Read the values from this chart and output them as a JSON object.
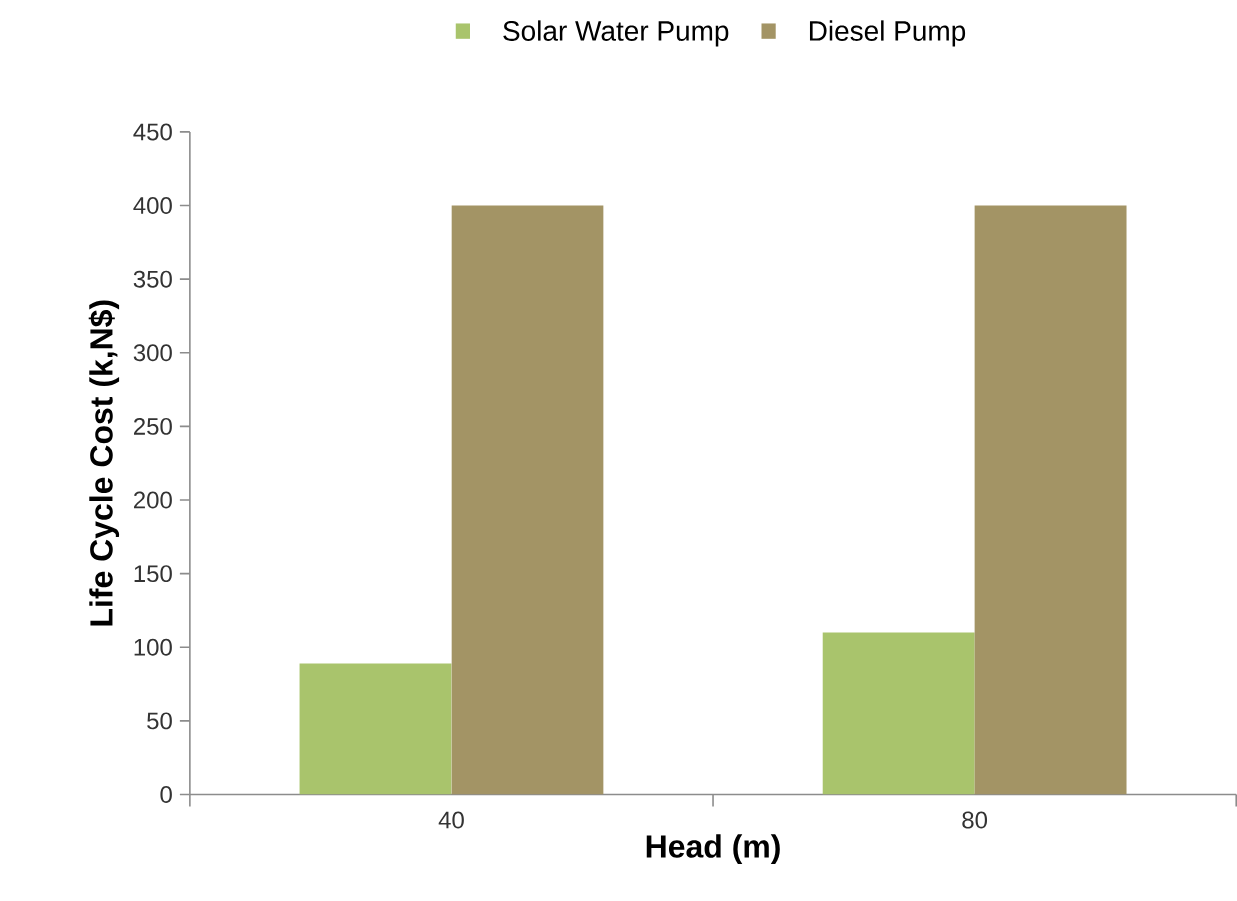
{
  "chart_data": {
    "type": "bar",
    "xlabel": "Head (m)",
    "ylabel": "Life Cycle Cost (k,N$)",
    "categories": [
      "40",
      "80"
    ],
    "series": [
      {
        "name": "Solar Water Pump",
        "color": "#a9c46c",
        "values": [
          89,
          110
        ]
      },
      {
        "name": "Diesel Pump",
        "color": "#a39465",
        "values": [
          400,
          400
        ]
      }
    ],
    "ylim": [
      0,
      450
    ],
    "yticks": [
      0,
      50,
      100,
      150,
      200,
      250,
      300,
      350,
      400,
      450
    ],
    "grid": false,
    "legend": "top"
  }
}
